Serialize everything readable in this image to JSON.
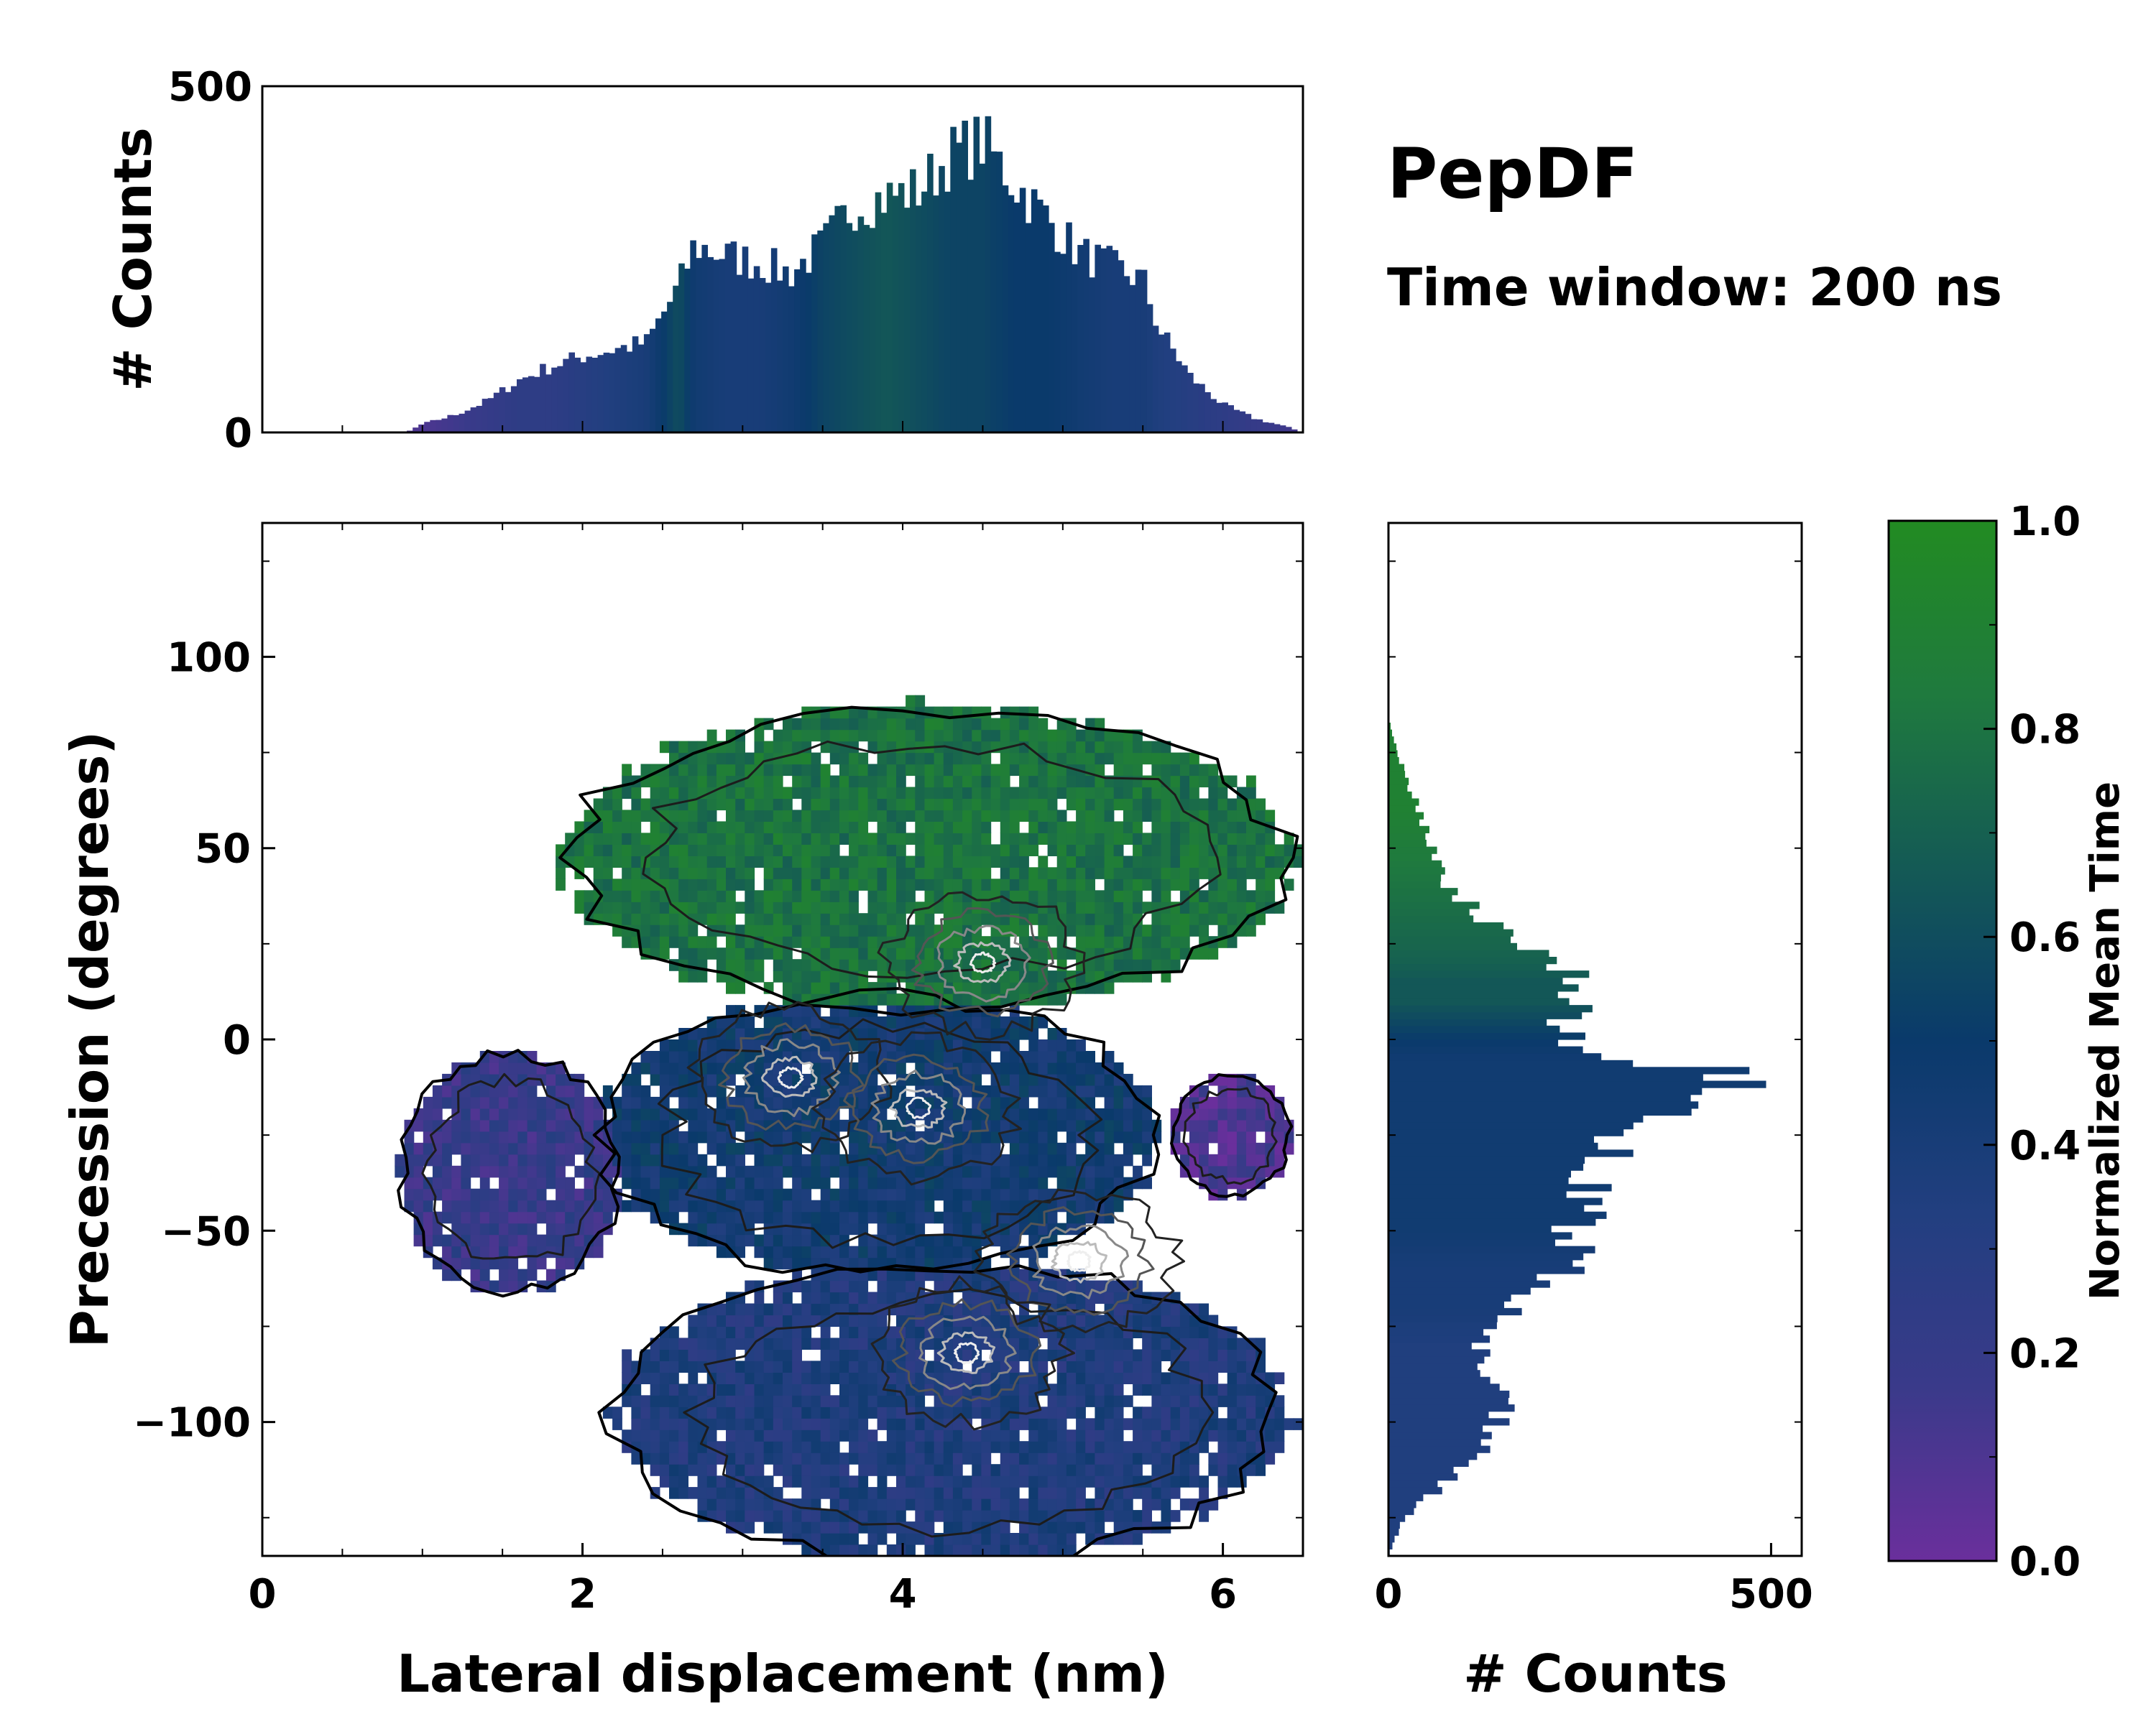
{
  "chart_data": [
    {
      "type": "heatmap",
      "panel": "main",
      "title": "",
      "xlabel": "Lateral displacement (nm)",
      "ylabel": "Precession (degrees)",
      "xlim": [
        0,
        6.5
      ],
      "ylim": [
        -135,
        135
      ],
      "xticks": [
        0,
        2,
        4,
        6
      ],
      "xtick_labels": [
        "0",
        "2",
        "4",
        "6"
      ],
      "yticks": [
        -100,
        -50,
        0,
        50,
        100
      ],
      "ytick_labels": [
        "−100",
        "−50",
        "0",
        "50",
        "100"
      ],
      "color_variable": "Normalized Mean Time",
      "overlay": "density contours (black / gray / white levels)",
      "regions": [
        {
          "description": "upper cluster",
          "x_range": [
            2.0,
            6.3
          ],
          "y_range": [
            10,
            85
          ],
          "mean_time": 0.8
        },
        {
          "description": "left lobe",
          "x_range": [
            0.9,
            2.2
          ],
          "y_range": [
            -65,
            -5
          ],
          "mean_time": 0.2
        },
        {
          "description": "central band",
          "x_range": [
            2.2,
            5.5
          ],
          "y_range": [
            -60,
            10
          ],
          "mean_time": 0.45
        },
        {
          "description": "lower cluster",
          "x_range": [
            2.3,
            6.3
          ],
          "y_range": [
            -135,
            -60
          ],
          "mean_time": 0.35
        },
        {
          "description": "right spot",
          "x_range": [
            5.7,
            6.4
          ],
          "y_range": [
            -40,
            -10
          ],
          "mean_time": 0.1
        }
      ],
      "density_peaks": [
        {
          "x": 4.5,
          "y": 20
        },
        {
          "x": 3.3,
          "y": -10
        },
        {
          "x": 4.1,
          "y": -18
        },
        {
          "x": 5.1,
          "y": -58
        },
        {
          "x": 4.4,
          "y": -82
        }
      ]
    },
    {
      "type": "bar",
      "panel": "top_histogram",
      "orientation": "vertical",
      "xlabel": "",
      "ylabel": "# Counts",
      "xlim": [
        0,
        6.5
      ],
      "ylim": [
        0,
        500
      ],
      "yticks": [
        0,
        500
      ],
      "ytick_labels": [
        "0",
        "500"
      ],
      "x": [
        0.9,
        1.0,
        1.2,
        1.4,
        1.6,
        1.8,
        2.0,
        2.2,
        2.4,
        2.6,
        2.7,
        2.9,
        3.1,
        3.3,
        3.5,
        3.7,
        3.9,
        4.1,
        4.3,
        4.5,
        4.7,
        4.9,
        5.1,
        5.3,
        5.5,
        5.6,
        5.8,
        6.0,
        6.2,
        6.4,
        6.5
      ],
      "values": [
        0,
        12,
        25,
        45,
        75,
        95,
        110,
        120,
        130,
        210,
        270,
        255,
        245,
        230,
        270,
        330,
        340,
        350,
        400,
        420,
        360,
        310,
        260,
        240,
        220,
        150,
        80,
        40,
        20,
        8,
        0
      ],
      "color_by_time": [
        0.1,
        0.1,
        0.15,
        0.2,
        0.25,
        0.25,
        0.3,
        0.35,
        0.4,
        0.6,
        0.45,
        0.4,
        0.4,
        0.45,
        0.55,
        0.6,
        0.65,
        0.6,
        0.55,
        0.55,
        0.5,
        0.5,
        0.45,
        0.4,
        0.4,
        0.35,
        0.3,
        0.25,
        0.2,
        0.15,
        0.1
      ]
    },
    {
      "type": "bar",
      "panel": "right_histogram",
      "orientation": "horizontal",
      "xlabel": "# Counts",
      "ylabel": "",
      "xlim": [
        0,
        540
      ],
      "ylim": [
        -135,
        135
      ],
      "xticks": [
        0,
        500
      ],
      "xtick_labels": [
        "0",
        "500"
      ],
      "y": [
        -135,
        -125,
        -115,
        -100,
        -90,
        -80,
        -70,
        -60,
        -50,
        -40,
        -30,
        -20,
        -15,
        -10,
        -5,
        0,
        10,
        15,
        20,
        30,
        40,
        50,
        60,
        70,
        80,
        85
      ],
      "values": [
        0,
        20,
        80,
        150,
        140,
        120,
        160,
        230,
        240,
        260,
        280,
        330,
        420,
        470,
        330,
        230,
        250,
        250,
        230,
        130,
        80,
        55,
        40,
        20,
        5,
        0
      ],
      "color_by_time": [
        0.35,
        0.35,
        0.35,
        0.35,
        0.35,
        0.35,
        0.4,
        0.4,
        0.45,
        0.45,
        0.45,
        0.45,
        0.45,
        0.45,
        0.45,
        0.5,
        0.65,
        0.65,
        0.7,
        0.75,
        0.8,
        0.85,
        0.9,
        0.9,
        0.9,
        0.9
      ]
    },
    {
      "type": "colorbar",
      "panel": "colorbar",
      "label": "Normalized Mean Time",
      "range": [
        0.0,
        1.0
      ],
      "ticks": [
        0.0,
        0.2,
        0.4,
        0.6,
        0.8,
        1.0
      ],
      "tick_labels": [
        "0.0",
        "0.2",
        "0.4",
        "0.6",
        "0.8",
        "1.0"
      ],
      "colormap_stops": [
        "#6a2f9c",
        "#3a3a8a",
        "#223f80",
        "#0a3a6b",
        "#145a55",
        "#1f7a3e",
        "#228b22"
      ]
    }
  ],
  "annotations": {
    "title": "PepDF",
    "subtitle": "Time window: 200 ns"
  }
}
